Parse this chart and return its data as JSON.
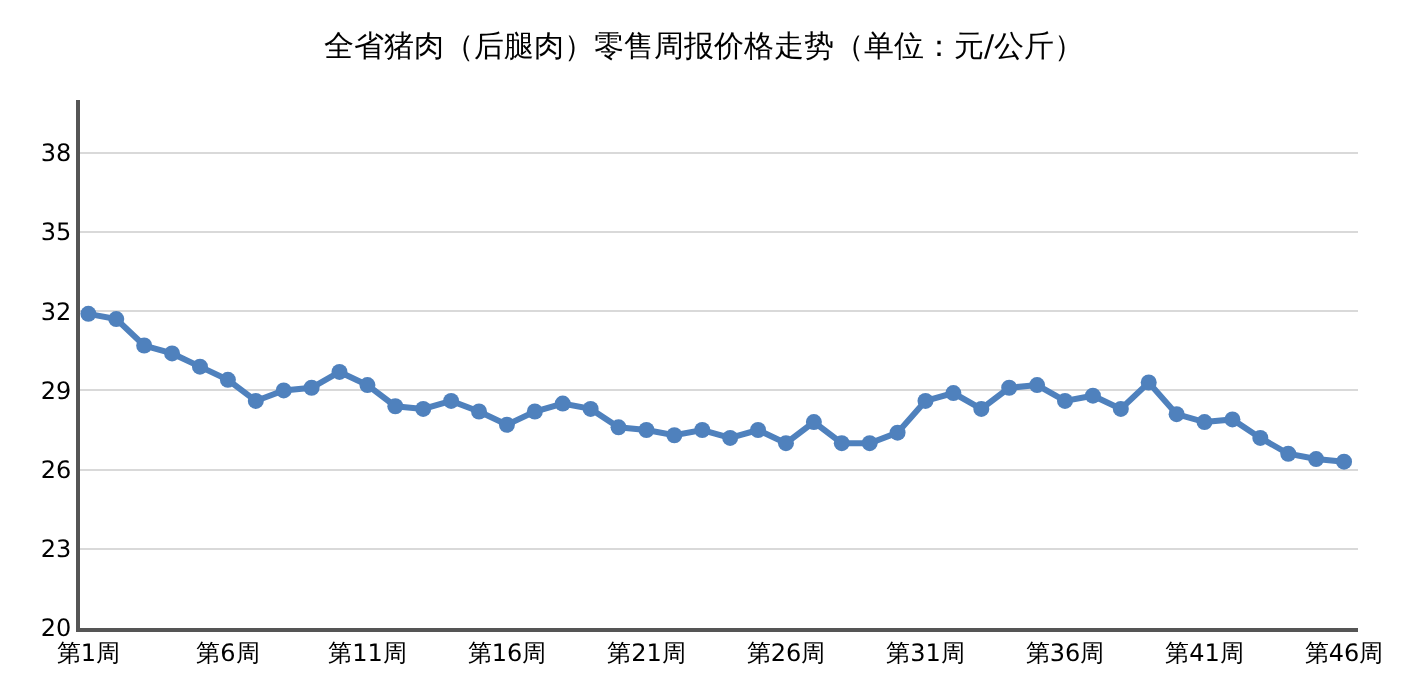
{
  "chart_data": {
    "type": "line",
    "title": "全省猪肉（后腿肉）零售周报价格走势（单位：元/公斤）",
    "categories": [
      "第1周",
      null,
      null,
      null,
      null,
      "第6周",
      null,
      null,
      null,
      null,
      "第11周",
      null,
      null,
      null,
      null,
      "第16周",
      null,
      null,
      null,
      null,
      "第21周",
      null,
      null,
      null,
      null,
      "第26周",
      null,
      null,
      null,
      null,
      "第31周",
      null,
      null,
      null,
      null,
      "第36周",
      null,
      null,
      null,
      null,
      "第41周",
      null,
      null,
      null,
      null,
      "第46周"
    ],
    "series": [
      {
        "color": "#4f81bd",
        "values": [
          31.9,
          31.7,
          30.7,
          30.4,
          29.9,
          29.4,
          28.6,
          29.0,
          29.1,
          29.7,
          29.2,
          28.4,
          28.3,
          28.6,
          28.2,
          27.7,
          28.2,
          28.5,
          28.3,
          27.6,
          27.5,
          27.3,
          27.5,
          27.2,
          27.5,
          27.0,
          27.8,
          27.0,
          27.0,
          27.4,
          28.6,
          28.9,
          28.3,
          29.1,
          29.2,
          28.6,
          28.8,
          28.3,
          29.3,
          28.1,
          27.8,
          27.9,
          27.2,
          26.6,
          26.4,
          26.3
        ]
      }
    ],
    "ylim": [
      20,
      40
    ],
    "yticks": [
      20,
      23,
      26,
      29,
      32,
      35,
      38
    ],
    "grid": "y",
    "marker": "circle",
    "line_style": "solid"
  }
}
